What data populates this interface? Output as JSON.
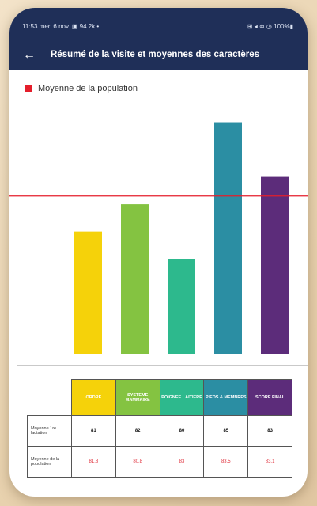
{
  "status_bar": {
    "left": "11:53  mer. 6 nov.  ▣ 94 2k •",
    "right": "⊞ ◂ ⊗ ◷ 100%▮"
  },
  "app_bar": {
    "title": "Résumé de la visite et moyennes des caractères"
  },
  "legend": {
    "label": "Moyenne de la population",
    "color": "#e41e2b"
  },
  "chart_data": {
    "type": "bar",
    "categories": [
      "ORDRE",
      "SYSTEME MAMMAIRE",
      "POIGNÉE LAITIÈRE",
      "PIEDS & MEMBRES",
      "SCORE FINAL"
    ],
    "colors": [
      "#f5d20a",
      "#84c341",
      "#2db98d",
      "#2b8ea3",
      "#5c2c7a"
    ],
    "series": [
      {
        "values": [
          81,
          82,
          80,
          85,
          83
        ]
      }
    ],
    "reference_line": {
      "value": 82.3,
      "color": "#e41e2b"
    },
    "ylim": [
      76.5,
      86
    ],
    "grid": false,
    "legend_position": "top-left"
  },
  "table": {
    "headers": [
      {
        "label": "ORDRE",
        "color": "#f5d20a"
      },
      {
        "label": "SYSTEME MAMMAIRE",
        "color": "#84c341"
      },
      {
        "label": "POIGNÉE LAITIÈRE",
        "color": "#2db98d"
      },
      {
        "label": "PIEDS & MEMBRES",
        "color": "#2b8ea3"
      },
      {
        "label": "SCORE FINAL",
        "color": "#5c2c7a"
      }
    ],
    "rows": [
      {
        "label": "Moyenne 1re lactation",
        "values": [
          "81",
          "82",
          "80",
          "85",
          "83"
        ]
      },
      {
        "label": "Moyenne de la population",
        "values": [
          "81.8",
          "80.8",
          "83",
          "83.5",
          "83.1"
        ]
      }
    ]
  }
}
